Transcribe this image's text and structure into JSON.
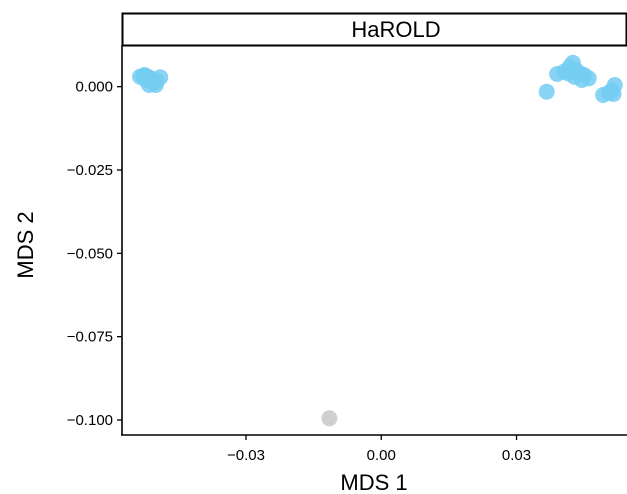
{
  "chart_data": {
    "type": "scatter",
    "panel_title": "HaROLD",
    "xlabel": "MDS 1",
    "ylabel": "MDS 2",
    "xlim": [
      -0.0575,
      0.0545
    ],
    "ylim": [
      -0.1045,
      0.0125
    ],
    "x_ticks": [
      {
        "value": -0.03,
        "label": "−0.03"
      },
      {
        "value": 0.0,
        "label": "0.00"
      },
      {
        "value": 0.03,
        "label": "0.03"
      }
    ],
    "y_ticks": [
      {
        "value": 0.0,
        "label": "0.000"
      },
      {
        "value": -0.025,
        "label": "−0.025"
      },
      {
        "value": -0.05,
        "label": "−0.050"
      },
      {
        "value": -0.075,
        "label": "−0.075"
      },
      {
        "value": -0.1,
        "label": "−0.100"
      }
    ],
    "grid": false,
    "colors": {
      "blue": "#74cdf2",
      "grey": "#c8c8c8"
    },
    "series": [
      {
        "color": "blue",
        "points": [
          [
            -0.0535,
            0.003
          ],
          [
            -0.0525,
            0.0035
          ],
          [
            -0.0518,
            0.003
          ],
          [
            -0.0512,
            0.0025
          ],
          [
            -0.0505,
            0.0012
          ],
          [
            -0.0515,
            0.0005
          ],
          [
            -0.0498,
            0.0018
          ],
          [
            -0.049,
            0.0028
          ],
          [
            -0.05,
            0.0005
          ],
          [
            -0.0522,
            0.002
          ],
          [
            -0.0528,
            0.0032
          ],
          [
            0.0367,
            -0.0015
          ],
          [
            0.039,
            0.0038
          ],
          [
            0.0405,
            0.0045
          ],
          [
            0.0418,
            0.006
          ],
          [
            0.0425,
            0.0072
          ],
          [
            0.0432,
            0.005
          ],
          [
            0.044,
            0.004
          ],
          [
            0.045,
            0.0035
          ],
          [
            0.046,
            0.0025
          ],
          [
            0.0428,
            0.003
          ],
          [
            0.0415,
            0.004
          ],
          [
            0.0445,
            0.002
          ],
          [
            0.0492,
            -0.0025
          ],
          [
            0.0505,
            -0.0018
          ],
          [
            0.0512,
            -0.001
          ],
          [
            0.0515,
            -0.0022
          ],
          [
            0.0518,
            0.0005
          ]
        ]
      },
      {
        "color": "grey",
        "points": [
          [
            -0.0115,
            -0.0995
          ]
        ]
      }
    ]
  }
}
